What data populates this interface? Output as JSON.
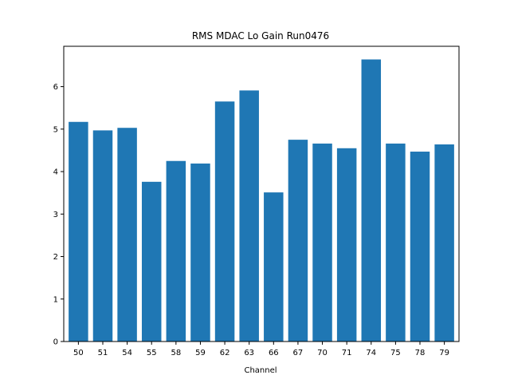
{
  "chart_data": {
    "type": "bar",
    "title": "RMS MDAC Lo Gain Run0476",
    "xlabel": "Channel",
    "ylabel": "",
    "categories": [
      "50",
      "51",
      "54",
      "55",
      "58",
      "59",
      "62",
      "63",
      "66",
      "67",
      "70",
      "71",
      "74",
      "75",
      "78",
      "79"
    ],
    "values": [
      5.17,
      4.97,
      5.03,
      3.76,
      4.25,
      4.19,
      5.65,
      5.91,
      3.51,
      4.75,
      4.66,
      4.55,
      6.64,
      4.66,
      4.47,
      4.64
    ],
    "ylim": [
      0,
      6.95
    ],
    "yticks": [
      "0",
      "1",
      "2",
      "3",
      "4",
      "5",
      "6"
    ],
    "grid": false,
    "bar_color": "#1f77b4"
  }
}
